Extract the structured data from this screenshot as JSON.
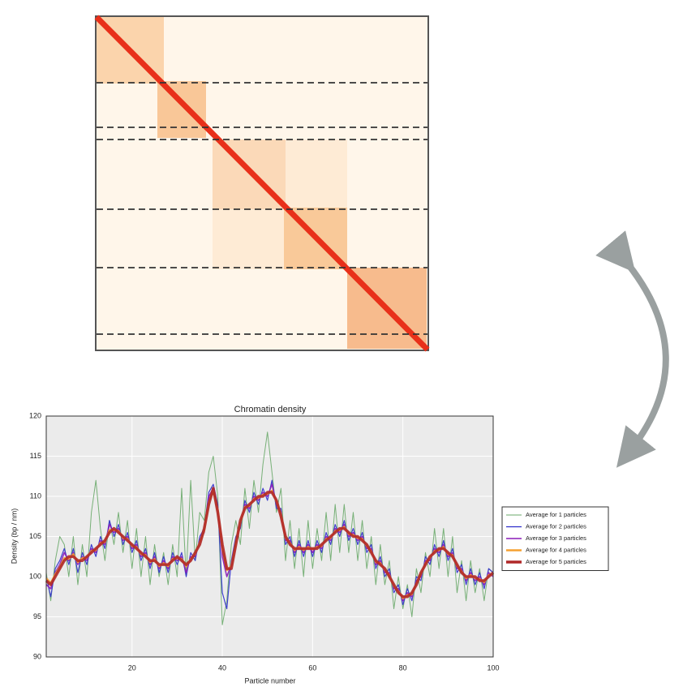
{
  "chart_data": {
    "type": "line",
    "title": "Chromatin density",
    "xlabel": "Particle number",
    "ylabel": "Density (bp / nm)",
    "x": [
      1,
      2,
      3,
      4,
      5,
      6,
      7,
      8,
      9,
      10,
      11,
      12,
      13,
      14,
      15,
      16,
      17,
      18,
      19,
      20,
      21,
      22,
      23,
      24,
      25,
      26,
      27,
      28,
      29,
      30,
      31,
      32,
      33,
      34,
      35,
      36,
      37,
      38,
      39,
      40,
      41,
      42,
      43,
      44,
      45,
      46,
      47,
      48,
      49,
      50,
      51,
      52,
      53,
      54,
      55,
      56,
      57,
      58,
      59,
      60,
      61,
      62,
      63,
      64,
      65,
      66,
      67,
      68,
      69,
      70,
      71,
      72,
      73,
      74,
      75,
      76,
      77,
      78,
      79,
      80,
      81,
      82,
      83,
      84,
      85,
      86,
      87,
      88,
      89,
      90,
      91,
      92,
      93,
      94,
      95,
      96,
      97,
      98,
      99,
      100
    ],
    "xlim": [
      1,
      100
    ],
    "xticks": [
      20,
      40,
      60,
      80,
      100
    ],
    "ylim": [
      90,
      120
    ],
    "yticks": [
      90,
      95,
      100,
      105,
      110,
      115,
      120
    ],
    "grid": true,
    "legend": "outside right",
    "series": [
      {
        "name": "Average for 1 particles",
        "color": "#6aaa6a",
        "values": [
          100.5,
          97,
          102,
          105,
          104,
          100,
          105,
          99,
          104,
          100,
          108,
          112,
          106,
          102,
          107,
          104,
          108,
          103,
          107,
          101,
          106,
          100,
          105,
          99,
          104,
          100,
          103,
          99,
          104,
          100,
          111,
          100,
          112,
          102,
          108,
          107,
          113,
          115,
          110,
          94,
          97,
          104,
          107,
          104,
          111,
          106,
          112,
          108,
          114,
          118,
          113,
          108,
          111,
          102,
          107,
          101,
          106,
          100,
          107,
          101,
          106,
          102,
          108,
          102,
          109,
          103,
          109,
          103,
          108,
          102,
          107,
          101,
          105,
          99,
          104,
          99,
          102,
          96,
          100,
          96,
          99,
          95,
          101,
          98,
          103,
          100,
          106,
          101,
          106,
          100,
          105,
          98,
          102,
          97,
          102,
          98,
          101,
          97,
          101,
          100.5
        ]
      },
      {
        "name": "Average for 2 particles",
        "color": "#2d2dcc",
        "values": [
          100,
          97.5,
          101,
          102,
          103.5,
          101.5,
          103.5,
          100.5,
          103,
          101.5,
          104,
          102.5,
          105,
          103.5,
          107,
          105,
          106.5,
          104,
          105.5,
          103,
          104.5,
          102,
          103.5,
          101,
          103,
          100.5,
          102.5,
          100.5,
          103,
          101.5,
          103,
          100,
          103,
          102,
          105,
          106,
          110.5,
          111.5,
          109,
          98,
          96,
          102,
          105,
          106,
          109.5,
          108,
          110.5,
          109,
          111,
          109.5,
          112,
          108.5,
          108.5,
          104,
          105,
          102.5,
          104.5,
          102.5,
          104.5,
          102.5,
          104.5,
          103,
          105.5,
          104,
          106.5,
          105,
          107,
          104.5,
          106,
          104,
          105.5,
          103,
          104,
          101,
          102.5,
          100,
          101,
          98,
          99,
          96.5,
          98.5,
          97,
          100,
          99.5,
          102.5,
          101.5,
          104,
          102.5,
          104.5,
          102,
          103.5,
          100.5,
          101.5,
          99,
          101,
          99,
          100.5,
          98.5,
          101,
          100.5
        ]
      },
      {
        "name": "Average for 3 particles",
        "color": "#8a1ab8",
        "values": [
          99,
          98.5,
          100.5,
          101.5,
          103,
          102,
          103,
          101.5,
          102.5,
          102,
          103.5,
          103,
          104.5,
          104,
          106.5,
          105.5,
          106,
          104.5,
          105,
          103.5,
          104,
          102.5,
          103,
          101.5,
          102.5,
          101,
          102,
          101,
          102.5,
          102,
          102.5,
          100.5,
          102.5,
          102.5,
          104.5,
          105.5,
          110,
          111,
          108.5,
          102.5,
          100,
          101.5,
          104.5,
          106.5,
          109,
          108.5,
          110,
          109.5,
          110.5,
          110,
          111.5,
          109,
          108,
          104.5,
          104.5,
          103,
          104,
          103,
          104,
          103,
          104,
          103.5,
          105,
          104.5,
          106,
          105.5,
          106.5,
          105,
          105.5,
          104.5,
          105,
          103.5,
          103.5,
          101.5,
          102,
          100.5,
          100.5,
          98.5,
          98.5,
          97,
          98,
          97.5,
          99.5,
          100,
          102,
          102,
          103.5,
          103,
          104,
          102.5,
          103,
          101,
          101,
          99.5,
          100.5,
          99.5,
          100,
          99,
          100.5,
          100
        ]
      },
      {
        "name": "Average for 4 particles",
        "color": "#f5a030",
        "values": [
          99.8,
          99.2,
          100.3,
          101.2,
          102.3,
          102.2,
          102.8,
          101.8,
          102.3,
          102.4,
          103.2,
          103.3,
          104.2,
          104.3,
          105.8,
          105.8,
          105.7,
          104.8,
          104.7,
          103.8,
          103.7,
          102.8,
          102.7,
          101.8,
          102.2,
          101.3,
          101.7,
          101.3,
          102.2,
          102.3,
          102.2,
          101.3,
          102.2,
          102.8,
          104.3,
          105.7,
          109.3,
          110.7,
          108.3,
          103.5,
          100.8,
          101.3,
          104.3,
          106.7,
          108.7,
          108.8,
          109.7,
          109.8,
          110.2,
          110.3,
          110.7,
          109.3,
          107.8,
          104.8,
          104.2,
          103.3,
          103.7,
          103.3,
          103.7,
          103.4,
          103.7,
          103.8,
          104.7,
          104.8,
          105.7,
          105.8,
          106.2,
          105.3,
          105.2,
          104.8,
          104.7,
          103.8,
          103.2,
          101.8,
          101.7,
          100.8,
          100.2,
          98.8,
          98.2,
          97.3,
          97.7,
          97.8,
          99.2,
          100.3,
          101.7,
          102.3,
          103.2,
          103.3,
          103.7,
          102.8,
          102.7,
          101.3,
          100.7,
          99.8,
          100.2,
          99.8,
          99.7,
          99.3,
          100.2,
          100.3
        ]
      },
      {
        "name": "Average for 5 particles",
        "color": "#b02828",
        "values": [
          99.5,
          99,
          100,
          101,
          102,
          102.5,
          102.5,
          102,
          102,
          102.5,
          103,
          103.5,
          104,
          104.5,
          105.5,
          106,
          105.5,
          105,
          104.5,
          104,
          103.5,
          103,
          102.5,
          102,
          102,
          101.5,
          101.5,
          101.5,
          102,
          102.5,
          102,
          101.5,
          102,
          103,
          104,
          106,
          109,
          111,
          108,
          104,
          101,
          101,
          104,
          107,
          108.5,
          109,
          109.5,
          110,
          110,
          110.5,
          110.5,
          109.5,
          107.5,
          105,
          104,
          103.5,
          103.5,
          103.5,
          103.5,
          103.5,
          103.5,
          104,
          104.5,
          105,
          105.5,
          106,
          106,
          105.5,
          105,
          105,
          104.5,
          104,
          103,
          102,
          101.5,
          101,
          100,
          99,
          98,
          97.5,
          97.5,
          98,
          99,
          100.5,
          101.5,
          102.5,
          103,
          103.5,
          103.5,
          103,
          102.5,
          101.5,
          100.5,
          100,
          100,
          100,
          99.5,
          99.5,
          100,
          100.5
        ]
      }
    ]
  }
}
